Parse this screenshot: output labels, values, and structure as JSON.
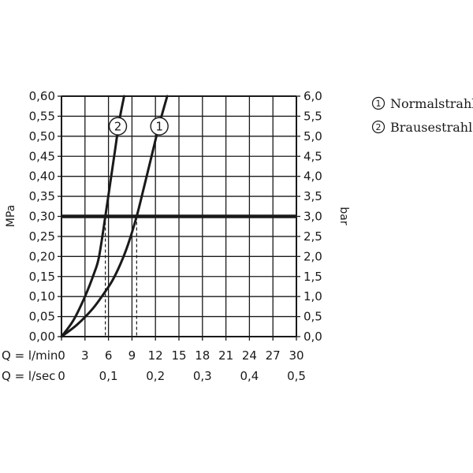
{
  "chart_data": {
    "type": "line",
    "title": "",
    "left_axis": {
      "label": "MPa",
      "ylim": [
        0,
        0.6
      ],
      "ticks": [
        "0,00",
        "0,05",
        "0,10",
        "0,15",
        "0,20",
        "0,25",
        "0,30",
        "0,35",
        "0,40",
        "0,45",
        "0,50",
        "0,55",
        "0,60"
      ]
    },
    "right_axis": {
      "label": "bar",
      "ylim": [
        0,
        6
      ],
      "ticks": [
        "0,0",
        "0,5",
        "1,0",
        "1,5",
        "2,0",
        "2,5",
        "3,0",
        "3,5",
        "4,0",
        "4,5",
        "5,0",
        "5,5",
        "6,0"
      ]
    },
    "x_axis": {
      "label": "Q = l/min",
      "xlim": [
        0,
        30
      ],
      "ticks": [
        "0",
        "3",
        "6",
        "9",
        "12",
        "15",
        "18",
        "21",
        "24",
        "27",
        "30"
      ]
    },
    "x_axis_secondary": {
      "label": "Q = l/sec",
      "tick_values": [
        0,
        6,
        12,
        18,
        24,
        30
      ],
      "ticks": [
        "0",
        "0,1",
        "0,2",
        "0,3",
        "0,4",
        "0,5"
      ]
    },
    "grid": true,
    "reference_line": {
      "y": 0.3,
      "label": ""
    },
    "drop_lines": [
      {
        "series": "2",
        "x": 5.6,
        "y": 0.3
      },
      {
        "series": "1",
        "x": 9.6,
        "y": 0.3
      }
    ],
    "series": [
      {
        "name": "1",
        "marker": "1",
        "x": [
          0,
          2,
          4,
          5.5,
          6.5,
          7.5,
          8.5,
          9.6,
          10.5,
          11.5,
          12.5,
          13.5
        ],
        "y": [
          0,
          0.03,
          0.07,
          0.11,
          0.14,
          0.18,
          0.23,
          0.3,
          0.37,
          0.45,
          0.53,
          0.6
        ]
      },
      {
        "name": "2",
        "marker": "2",
        "x": [
          0,
          1.5,
          3,
          4.2,
          4.8,
          5.6,
          6.2,
          6.8,
          7.4,
          8.0
        ],
        "y": [
          0,
          0.04,
          0.1,
          0.16,
          0.2,
          0.3,
          0.38,
          0.46,
          0.54,
          0.6
        ]
      }
    ],
    "markers": [
      {
        "text": "2",
        "x": 7.2,
        "y": 0.525
      },
      {
        "text": "1",
        "x": 12.5,
        "y": 0.525
      }
    ]
  },
  "legend": {
    "items": [
      {
        "num": "1",
        "label": "Normalstrahl"
      },
      {
        "num": "2",
        "label": "Brausestrahl"
      }
    ]
  },
  "colors": {
    "line": "#1a1a1a",
    "grid": "#1a1a1a",
    "background": "#ffffff"
  }
}
